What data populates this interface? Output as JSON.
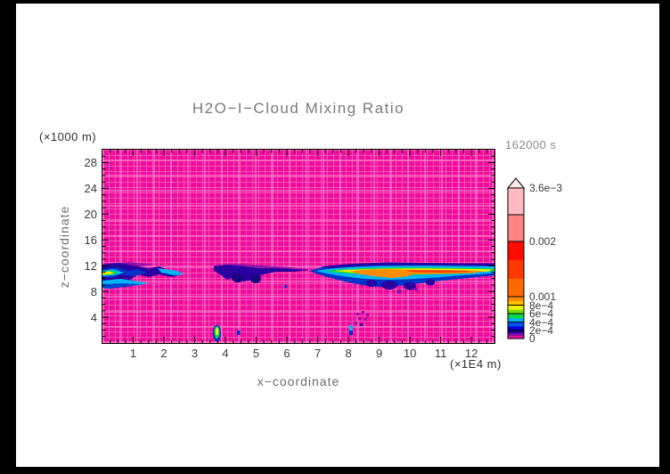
{
  "title": "H2O−I−Cloud Mixing Ratio",
  "annotations": {
    "time_label": "162000 s",
    "y_unit_label": "(×1000 m)",
    "x_unit_label": "(×1E4 m)"
  },
  "axes": {
    "x": {
      "label": "x−coordinate",
      "tick_labels": [
        "1",
        "2",
        "3",
        "4",
        "5",
        "6",
        "7",
        "8",
        "9",
        "10",
        "11",
        "12"
      ],
      "range": [
        0,
        12.75
      ]
    },
    "y": {
      "label": "z−coordinate",
      "tick_labels": [
        "4",
        "8",
        "12",
        "16",
        "20",
        "24",
        "28"
      ],
      "range": [
        0,
        30
      ]
    }
  },
  "colorbar": {
    "tick_labels": [
      "3.6e−3",
      "0.002",
      "0.001",
      "8e−4",
      "6e−4",
      "4e−4",
      "2e−4",
      "0"
    ],
    "levels": [
      0,
      0.0002,
      0.0004,
      0.0006,
      0.0008,
      0.001,
      0.002,
      0.0036
    ],
    "over_color": "#FBE6E8",
    "segments": [
      {
        "from": 0,
        "to": 0.0002,
        "colors": [
          "#EF0D9C",
          "#8A0FA8",
          "#2A00A0"
        ]
      },
      {
        "from": 0.0002,
        "to": 0.0004,
        "colors": [
          "#0B00C3",
          "#0050F0"
        ]
      },
      {
        "from": 0.0004,
        "to": 0.0006,
        "colors": [
          "#00B6F2",
          "#0CD848"
        ]
      },
      {
        "from": 0.0006,
        "to": 0.0008,
        "colors": [
          "#7CE000",
          "#F0F000"
        ]
      },
      {
        "from": 0.0008,
        "to": 0.001,
        "colors": [
          "#FFBE00",
          "#FF8C00"
        ]
      },
      {
        "from": 0.001,
        "to": 0.002,
        "colors": [
          "#FF6A00",
          "#FF3800",
          "#FF0C00"
        ]
      },
      {
        "from": 0.002,
        "to": 0.0036,
        "colors": [
          "#FF8484",
          "#FFBAC2"
        ]
      }
    ]
  },
  "chart_data": {
    "type": "heatmap",
    "title": "H2O−I−Cloud Mixing Ratio",
    "xlabel": "x−coordinate (×1E4 m)",
    "ylabel": "z−coordinate (×1000 m)",
    "time_annotation": "162000 s",
    "x_range": [
      0,
      12.75
    ],
    "y_range": [
      0,
      30
    ],
    "contour_levels": [
      0,
      0.0002,
      0.0004,
      0.0006,
      0.0008,
      0.001,
      0.002,
      0.0036
    ],
    "background_value": 0,
    "features": [
      {
        "name": "left cloud streak",
        "x": [
          0,
          2.6
        ],
        "z": [
          8.5,
          11.5
        ],
        "peak_value": 0.0008,
        "note": "yellow-green core at x≈0–0.5, z≈10.5 with cyan/blue envelope"
      },
      {
        "name": "detached navy patch",
        "x": [
          3.6,
          4.3
        ],
        "z": [
          10,
          12
        ],
        "peak_value": 0.0004
      },
      {
        "name": "mid-level thin band",
        "x": [
          4.3,
          6.7
        ],
        "z": [
          9.5,
          11.5
        ],
        "peak_value": 0.0004,
        "note": "navy band with purple upper fringe and hanging lobes"
      },
      {
        "name": "main anvil band",
        "x": [
          6.8,
          12.75
        ],
        "z": [
          8.5,
          11.5
        ],
        "peak_value": 0.002,
        "note": "orange-red core x≈8–12 at z≈10.3, graded yellow/green/cyan/blue envelope, extends to right boundary"
      },
      {
        "name": "low-level cell",
        "x": [
          3.6,
          3.8
        ],
        "z": [
          0.3,
          2.5
        ],
        "peak_value": 0.0007
      },
      {
        "name": "scattered specks",
        "x": [
          7.9,
          8.6
        ],
        "z": [
          0.5,
          3.2
        ],
        "peak_value": 0.0005
      }
    ]
  }
}
